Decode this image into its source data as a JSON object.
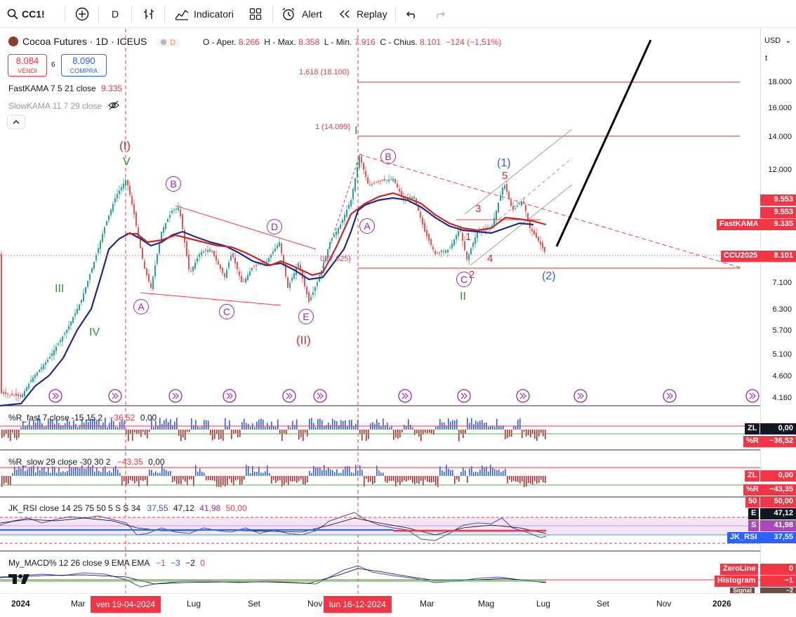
{
  "toolbar": {
    "symbol": "CC1!",
    "interval": "D",
    "indicators_label": "Indicatori",
    "alert_label": "Alert",
    "replay_label": "Replay"
  },
  "legend": {
    "title": "Cocoa Futures · 1D · ICEUS",
    "delayed_badge": "D",
    "ohlc": {
      "open_label": "O - Aper.",
      "open": "8.266",
      "high_label": "H - Max.",
      "high": "8.358",
      "low_label": "L - Min.",
      "low": "7.916",
      "close_label": "C - Chius.",
      "close": "8.101",
      "change": "−124 (−1,51%)"
    },
    "sell_price": "8.084",
    "sell_label": "VENDI",
    "spread": "6",
    "buy_price": "8.090",
    "buy_label": "COMPRA",
    "fastkama": {
      "label": "FastKAMA 7 5 21 close",
      "value": "9.335"
    },
    "slowkama": {
      "label": "SlowKAMA 11 7 29 close"
    }
  },
  "price_axis": {
    "currency": "USD",
    "scale_mode": "t",
    "ticks": [
      "18.000",
      "16.000",
      "14.000",
      "12.000",
      "9.553",
      "9.553",
      "7.100",
      "6.300",
      "5.700",
      "5.100",
      "4.600",
      "4.160"
    ],
    "fastkama_tag": {
      "name": "FastKAMA",
      "value": "9.335"
    },
    "ccu_tag": {
      "name": "CCU2025",
      "value": "8.101"
    }
  },
  "fib": {
    "level_1618": "1,618 (18.100)",
    "level_1": "1 (14.099)",
    "level_0": "0 (7.625)"
  },
  "waves": {
    "I_paren": "(I)",
    "V": "V",
    "III": "III",
    "IV": "IV",
    "II_paren": "(II)",
    "A": "A",
    "B": "B",
    "C": "C",
    "D": "D",
    "E": "E",
    "I_mark": "I",
    "II": "II",
    "one_paren": "(1)",
    "two_paren": "(2)",
    "n1": "1",
    "n2": "2",
    "n3": "3",
    "n4": "4",
    "n5": "5"
  },
  "panes": {
    "r_fast": {
      "label": "%R_fast 7 close -15 15 2",
      "v1": "−36,52",
      "v2": "0,00",
      "tag_zl": "ZL",
      "tag_zl_val": "0,00",
      "tag_r": "%R",
      "tag_r_val": "−36,52"
    },
    "r_slow": {
      "label": "%R_slow 29 close -30 30 2",
      "v1": "−43,35",
      "v2": "0,00",
      "tag_zl": "ZL",
      "tag_zl_val": "0,00",
      "tag_r": "%R",
      "tag_r_val": "−43,35"
    },
    "jk_rsi": {
      "label": "JK_RSI close 14 25 75 50 5 S S 34",
      "v1": "37,55",
      "v2": "47,12",
      "v3": "41,98",
      "v4": "50,00",
      "tag_50": "50",
      "tag_50_val": "50,00",
      "tag_e": "E",
      "tag_e_val": "47,12",
      "tag_s": "S",
      "tag_s_val": "41,98",
      "tag_jk": "JK_RSI",
      "tag_jk_val": "37,55"
    },
    "macd": {
      "label": "My_MACD% 12 26 close 9 EMA EMA",
      "v1": "−1",
      "v2": "−3",
      "v3": "−2",
      "v4": "0",
      "tag_zero": "ZeroLine",
      "tag_zero_val": "0",
      "tag_hist": "Histogram",
      "tag_hist_val": "−1",
      "tag_signal": "Signal",
      "tag_signal_val": "−2"
    }
  },
  "time_axis": {
    "labels": [
      "2024",
      "Mar",
      "Lug",
      "Set",
      "Nov",
      "Mar",
      "Mag",
      "Lug",
      "Set",
      "Nov",
      "2026"
    ],
    "badge_1": "ven 19-04-2024",
    "badge_2": "lun 16-12-2024"
  },
  "colors": {
    "red": "#f23645",
    "blue": "#2962ff",
    "navy": "#1e2a8a",
    "purple": "#9c27b0",
    "green": "#388e3c",
    "up": "#26a69a",
    "down": "#ef5350",
    "wave_red": "#d32f2f"
  }
}
